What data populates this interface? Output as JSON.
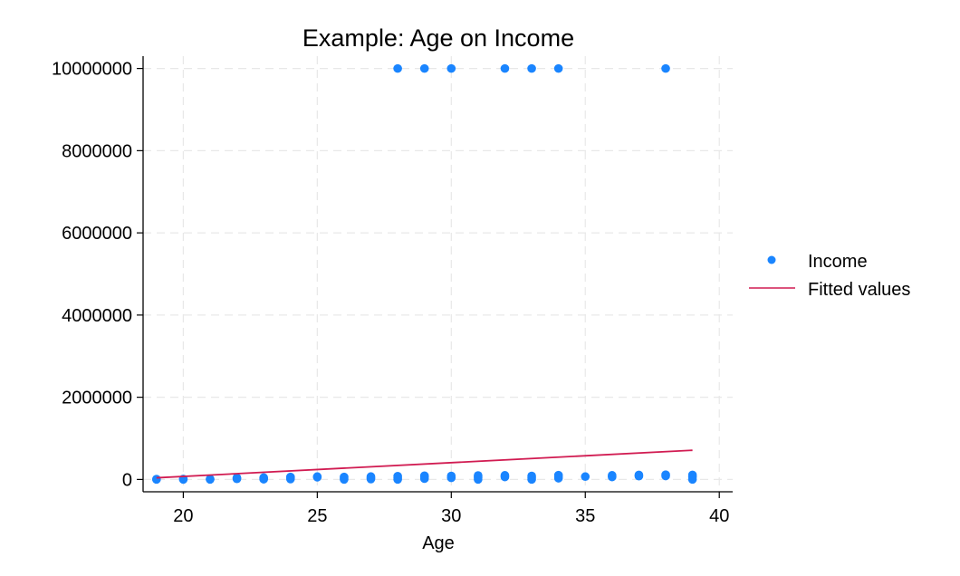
{
  "chart_data": {
    "type": "scatter",
    "title": "Example: Age on Income",
    "xlabel": "Age",
    "ylabel": "",
    "xlim": [
      18.5,
      40.5
    ],
    "ylim": [
      -300000,
      10300000
    ],
    "xticks": [
      20,
      25,
      30,
      35,
      40
    ],
    "yticks": [
      0,
      2000000,
      4000000,
      6000000,
      8000000,
      10000000
    ],
    "xtick_labels": [
      "20",
      "25",
      "30",
      "35",
      "40"
    ],
    "ytick_labels": [
      "0",
      "2000000",
      "4000000",
      "6000000",
      "8000000",
      "10000000"
    ],
    "grid": true,
    "legend_position": "right",
    "series": [
      {
        "name": "Income",
        "kind": "scatter",
        "color": "#1a85ff",
        "points": [
          [
            19,
            0
          ],
          [
            19,
            8000
          ],
          [
            20,
            2000
          ],
          [
            20,
            10000
          ],
          [
            21,
            0
          ],
          [
            21,
            12000
          ],
          [
            22,
            15000
          ],
          [
            22,
            40000
          ],
          [
            23,
            5000
          ],
          [
            23,
            30000
          ],
          [
            23,
            45000
          ],
          [
            24,
            10000
          ],
          [
            24,
            40000
          ],
          [
            24,
            60000
          ],
          [
            25,
            55000
          ],
          [
            25,
            70000
          ],
          [
            26,
            0
          ],
          [
            26,
            30000
          ],
          [
            26,
            60000
          ],
          [
            27,
            10000
          ],
          [
            27,
            40000
          ],
          [
            27,
            70000
          ],
          [
            28,
            0
          ],
          [
            28,
            35000
          ],
          [
            28,
            80000
          ],
          [
            28,
            10000000
          ],
          [
            29,
            20000
          ],
          [
            29,
            60000
          ],
          [
            29,
            90000
          ],
          [
            29,
            10000000
          ],
          [
            30,
            40000
          ],
          [
            30,
            85000
          ],
          [
            30,
            10000000
          ],
          [
            31,
            0
          ],
          [
            31,
            50000
          ],
          [
            31,
            95000
          ],
          [
            32,
            60000
          ],
          [
            32,
            100000
          ],
          [
            32,
            10000000
          ],
          [
            33,
            0
          ],
          [
            33,
            45000
          ],
          [
            33,
            85000
          ],
          [
            33,
            10000000
          ],
          [
            34,
            30000
          ],
          [
            34,
            70000
          ],
          [
            34,
            105000
          ],
          [
            34,
            10000000
          ],
          [
            35,
            70000
          ],
          [
            36,
            60000
          ],
          [
            36,
            100000
          ],
          [
            37,
            80000
          ],
          [
            37,
            110000
          ],
          [
            38,
            85000
          ],
          [
            38,
            115000
          ],
          [
            38,
            10000000
          ],
          [
            39,
            0
          ],
          [
            39,
            60000
          ],
          [
            39,
            110000
          ]
        ]
      },
      {
        "name": "Fitted values",
        "kind": "line",
        "color": "#d11c52",
        "points": [
          [
            19,
            40000
          ],
          [
            39,
            710000
          ]
        ]
      }
    ]
  }
}
